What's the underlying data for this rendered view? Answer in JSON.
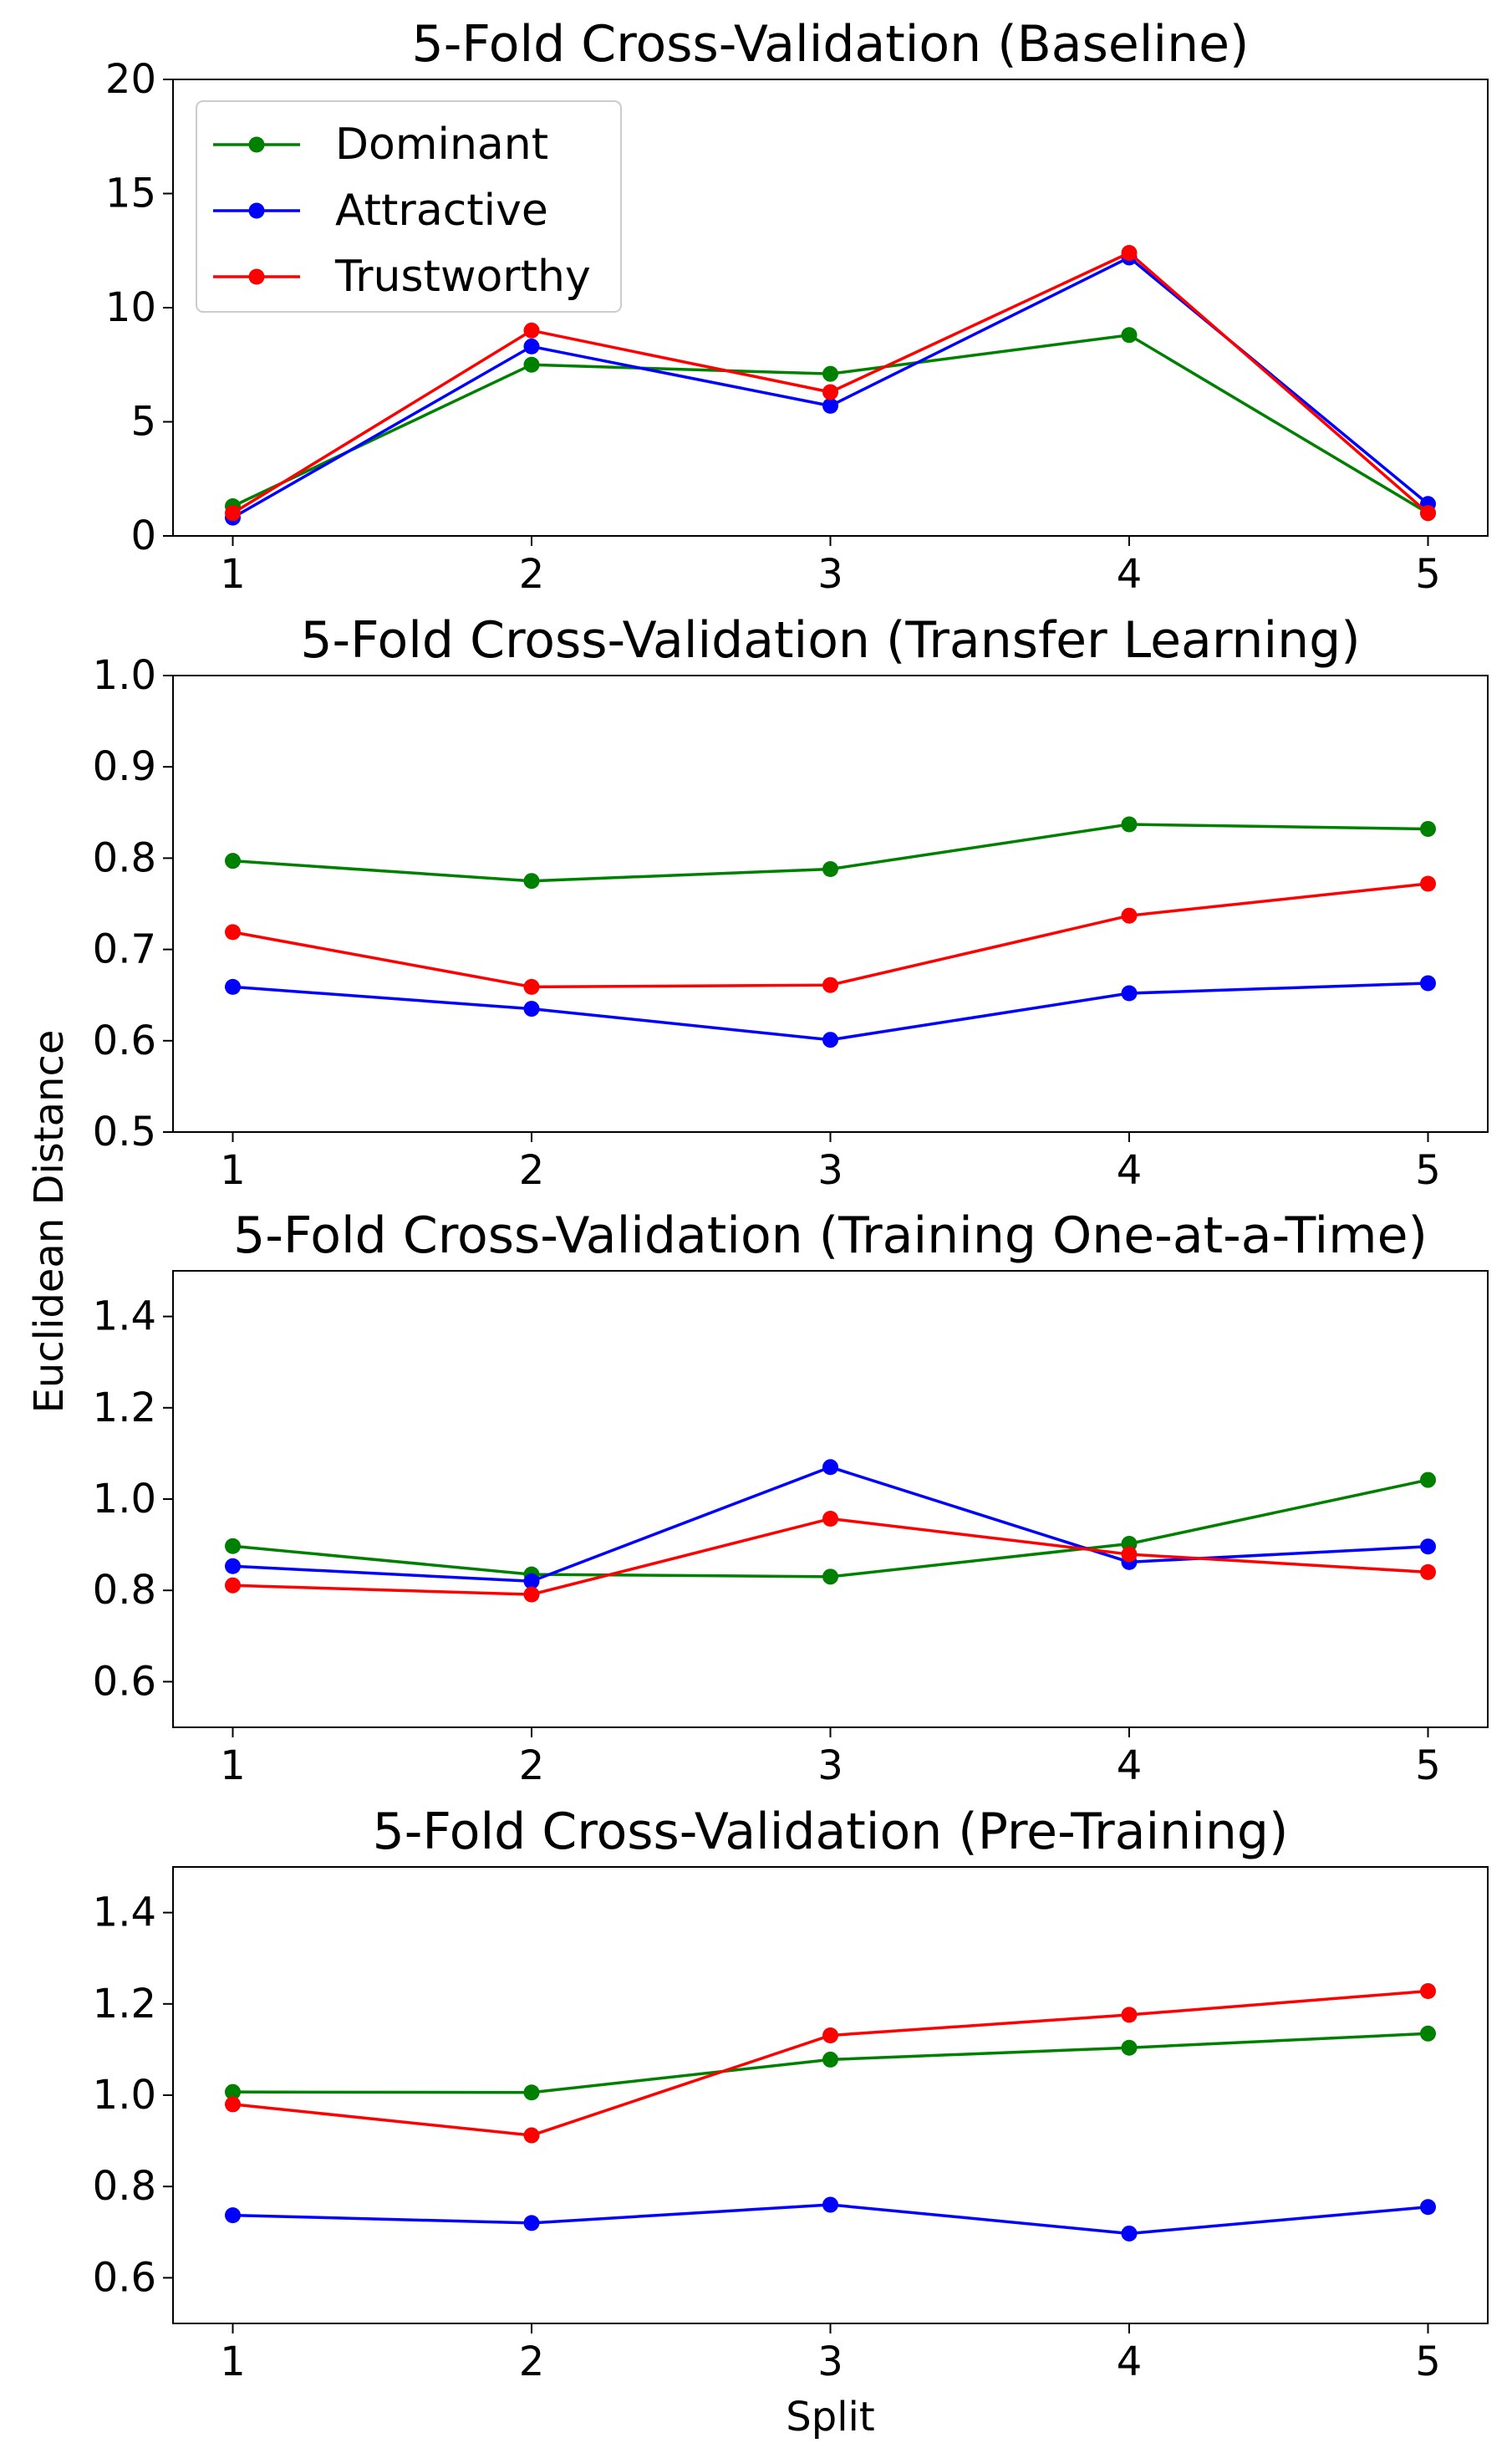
{
  "figure": {
    "shared_ylabel": "Euclidean Distance",
    "shared_xlabel": "Split"
  },
  "colors": {
    "Dominant": "#008000",
    "Attractive": "#0000ff",
    "Trustworthy": "#ff0000"
  },
  "chart_data": [
    {
      "type": "line",
      "title": "5-Fold Cross-Validation (Baseline)",
      "xlabel": "",
      "ylabel": "",
      "x": [
        1,
        2,
        3,
        4,
        5
      ],
      "xlim": [
        0.8,
        5.2
      ],
      "ylim": [
        0,
        20
      ],
      "yticks": [
        0,
        5,
        10,
        15,
        20
      ],
      "ytick_labels": [
        "0",
        "5",
        "10",
        "15",
        "20"
      ],
      "legend": "top-left",
      "series": [
        {
          "name": "Dominant",
          "values": [
            1.3,
            7.5,
            7.1,
            8.8,
            1.0
          ]
        },
        {
          "name": "Attractive",
          "values": [
            0.8,
            8.3,
            5.7,
            12.2,
            1.4
          ]
        },
        {
          "name": "Trustworthy",
          "values": [
            1.0,
            9.0,
            6.3,
            12.4,
            1.0
          ]
        }
      ]
    },
    {
      "type": "line",
      "title": "5-Fold Cross-Validation (Transfer Learning)",
      "xlabel": "",
      "ylabel": "",
      "x": [
        1,
        2,
        3,
        4,
        5
      ],
      "xlim": [
        0.8,
        5.2
      ],
      "ylim": [
        0.5,
        1.0
      ],
      "yticks": [
        0.5,
        0.6,
        0.7,
        0.8,
        0.9,
        1.0
      ],
      "ytick_labels": [
        "0.5",
        "0.6",
        "0.7",
        "0.8",
        "0.9",
        "1.0"
      ],
      "series": [
        {
          "name": "Dominant",
          "values": [
            0.797,
            0.775,
            0.788,
            0.837,
            0.832
          ]
        },
        {
          "name": "Attractive",
          "values": [
            0.659,
            0.635,
            0.601,
            0.652,
            0.663
          ]
        },
        {
          "name": "Trustworthy",
          "values": [
            0.719,
            0.659,
            0.661,
            0.737,
            0.772
          ]
        }
      ]
    },
    {
      "type": "line",
      "title": "5-Fold Cross-Validation (Training One-at-a-Time)",
      "xlabel": "",
      "ylabel": "",
      "x": [
        1,
        2,
        3,
        4,
        5
      ],
      "xlim": [
        0.8,
        5.2
      ],
      "ylim": [
        0.5,
        1.5
      ],
      "yticks": [
        0.6,
        0.8,
        1.0,
        1.2,
        1.4
      ],
      "ytick_labels": [
        "0.6",
        "0.8",
        "1.0",
        "1.2",
        "1.4"
      ],
      "series": [
        {
          "name": "Dominant",
          "values": [
            0.897,
            0.835,
            0.83,
            0.902,
            1.042
          ]
        },
        {
          "name": "Attractive",
          "values": [
            0.853,
            0.82,
            1.07,
            0.862,
            0.896
          ]
        },
        {
          "name": "Trustworthy",
          "values": [
            0.811,
            0.791,
            0.957,
            0.879,
            0.84
          ]
        }
      ]
    },
    {
      "type": "line",
      "title": "5-Fold Cross-Validation (Pre-Training)",
      "xlabel": "Split",
      "ylabel": "",
      "x": [
        1,
        2,
        3,
        4,
        5
      ],
      "xlim": [
        0.8,
        5.2
      ],
      "ylim": [
        0.5,
        1.5
      ],
      "yticks": [
        0.6,
        0.8,
        1.0,
        1.2,
        1.4
      ],
      "ytick_labels": [
        "0.6",
        "0.8",
        "1.0",
        "1.2",
        "1.4"
      ],
      "series": [
        {
          "name": "Dominant",
          "values": [
            1.007,
            1.006,
            1.078,
            1.104,
            1.135
          ]
        },
        {
          "name": "Attractive",
          "values": [
            0.737,
            0.72,
            0.76,
            0.697,
            0.755
          ]
        },
        {
          "name": "Trustworthy",
          "values": [
            0.98,
            0.912,
            1.131,
            1.176,
            1.228
          ]
        }
      ]
    }
  ]
}
